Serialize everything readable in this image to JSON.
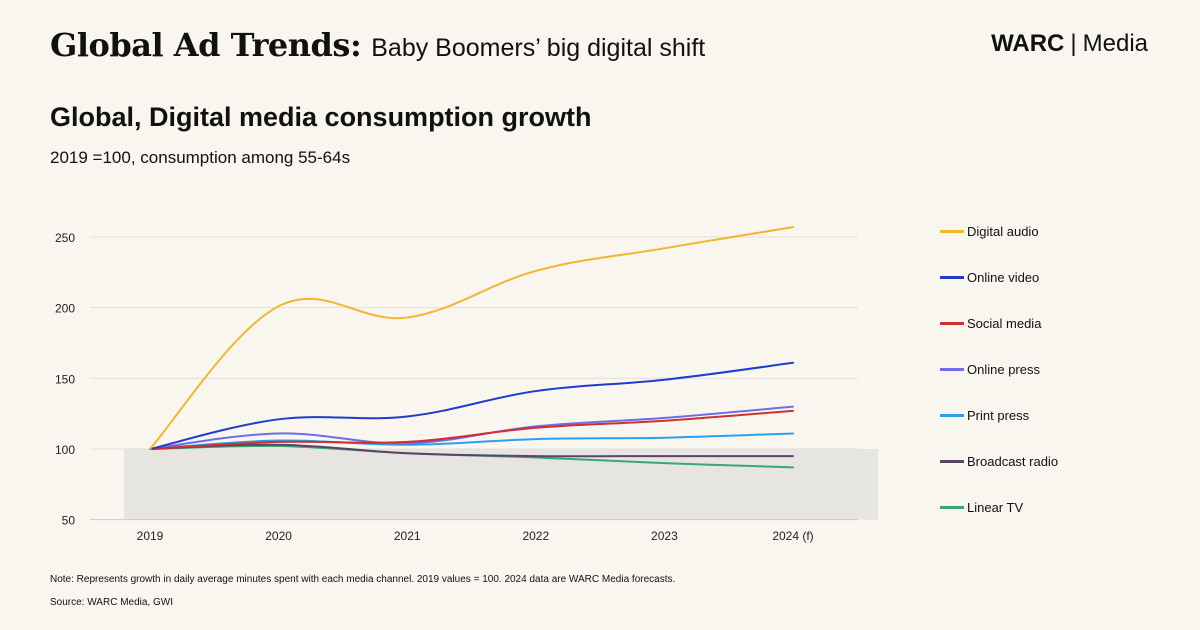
{
  "header": {
    "title_main": "Global Ad Trends:",
    "title_sub": "Baby Boomers’ big digital shift",
    "logo_brand": "WARC",
    "logo_separator": "|",
    "logo_suffix": "Media"
  },
  "footer": {
    "note": "Note: Represents growth in daily average minutes spent with each media channel. 2019 values = 100. 2024 data are WARC Media forecasts.",
    "source": "Source: WARC Media, GWI"
  },
  "chart_data": {
    "type": "line",
    "title": "Global, Digital media consumption growth",
    "subtitle": "2019 =100, consumption among 55-64s",
    "categories": [
      "2019",
      "2020",
      "2021",
      "2022",
      "2023",
      "2024 (f)"
    ],
    "yticks": [
      50,
      100,
      150,
      200,
      250
    ],
    "ylim": [
      50,
      260
    ],
    "baseline": 100,
    "baseline_fill": "#e6e5e1",
    "grid": true,
    "legend_position": "right",
    "series": [
      {
        "name": "Digital audio",
        "color": "#f0b72f",
        "values": [
          100,
          201,
          193,
          226,
          242,
          257
        ]
      },
      {
        "name": "Online video",
        "color": "#1f3ccc",
        "values": [
          100,
          121,
          123,
          141,
          149,
          161
        ]
      },
      {
        "name": "Social media",
        "color": "#d22e2e",
        "values": [
          100,
          105,
          105,
          115,
          120,
          127
        ]
      },
      {
        "name": "Online press",
        "color": "#6a6ee8",
        "values": [
          100,
          111,
          104,
          116,
          122,
          130
        ]
      },
      {
        "name": "Print press",
        "color": "#2aa1ef",
        "values": [
          100,
          106,
          103,
          107,
          108,
          111
        ]
      },
      {
        "name": "Broadcast radio",
        "color": "#5c4469",
        "values": [
          100,
          103,
          97,
          95,
          95,
          95
        ]
      },
      {
        "name": "Linear TV",
        "color": "#3aa776",
        "values": [
          100,
          102,
          97,
          94,
          90,
          87
        ]
      }
    ]
  }
}
